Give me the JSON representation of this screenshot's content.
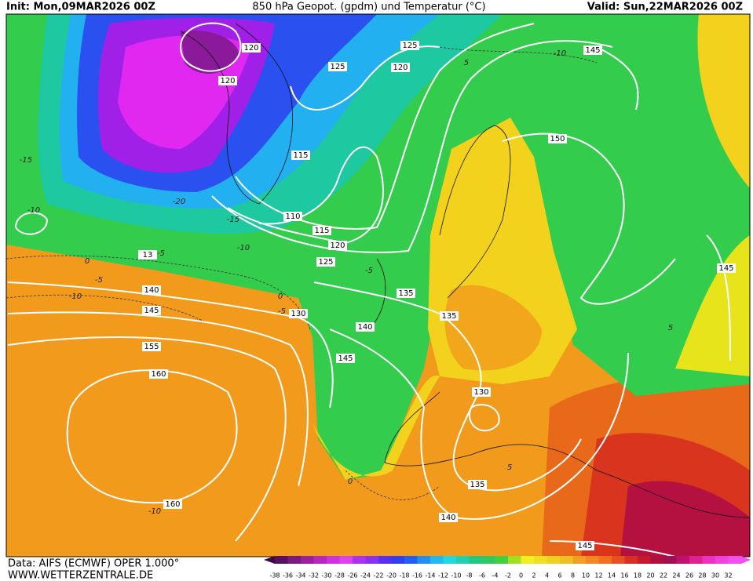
{
  "header": {
    "init": "Init: Mon,09MAR2026 00Z",
    "title": "850 hPa Geopot. (gpdm) und Temperatur (°C)",
    "valid": "Valid: Sun,22MAR2026 00Z"
  },
  "footer": {
    "source": "Data: AIFS (ECMWF) OPER 1.000°",
    "website": "WWW.WETTERZENTRALE.DE"
  },
  "legend": {
    "labels": [
      -38,
      -36,
      -34,
      -32,
      -30,
      -28,
      -26,
      -24,
      -22,
      -20,
      -18,
      -16,
      -14,
      -12,
      -10,
      -8,
      -6,
      -4,
      -2,
      0,
      2,
      4,
      6,
      8,
      10,
      12,
      14,
      16,
      18,
      20,
      22,
      24,
      26,
      28,
      30,
      32
    ]
  },
  "geopotential_labels": [
    "120",
    "120",
    "125",
    "125",
    "120",
    "145",
    "115",
    "110",
    "115",
    "120",
    "125",
    "13",
    "150",
    "140",
    "145",
    "155",
    "160",
    "130",
    "135",
    "135",
    "140",
    "145",
    "130",
    "135",
    "140",
    "160",
    "145",
    "145"
  ],
  "temperature_labels": [
    "-10",
    "5",
    "-15",
    "-10",
    "-20",
    "-15",
    "-10",
    "-5",
    "0",
    "-5",
    "-10",
    "0",
    "-5",
    "-5",
    "-10",
    "0",
    "5",
    "5"
  ]
}
